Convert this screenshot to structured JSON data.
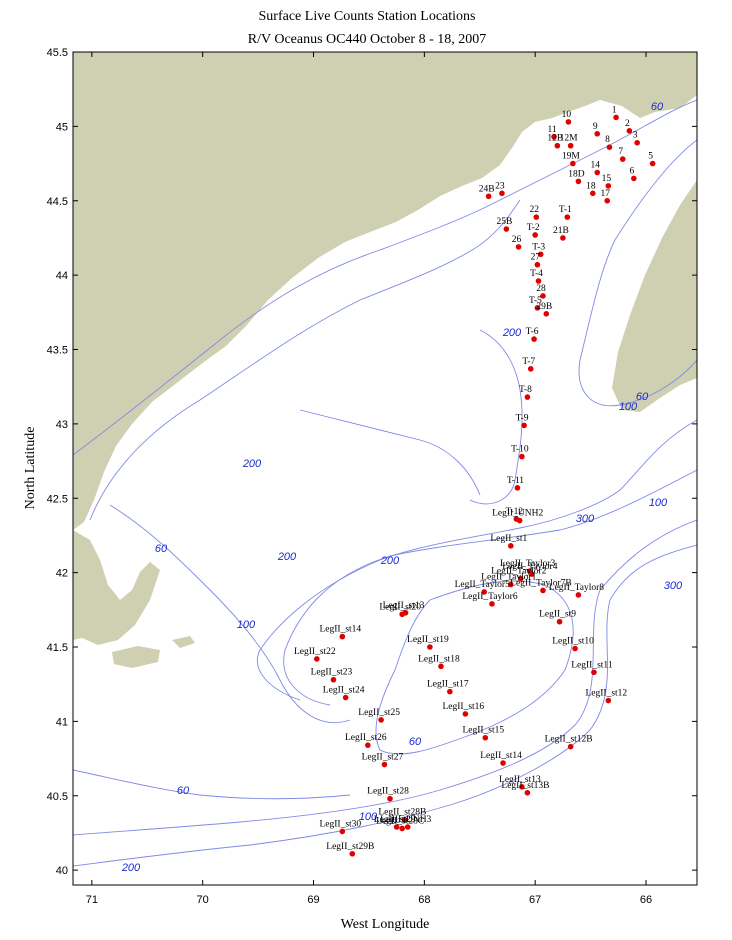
{
  "title": "Surface Live Counts Station Locations",
  "subtitle": "R/V Oceanus OC440 October 8 - 18, 2007",
  "x_label": "West Longitude",
  "y_label": "North Latitude",
  "xlim": [
    71.17,
    65.54
  ],
  "ylim": [
    39.9,
    45.5
  ],
  "xticks": [
    71,
    70,
    69,
    68,
    67,
    66
  ],
  "yticks": [
    40,
    40.5,
    41,
    41.5,
    42,
    42.5,
    43,
    43.5,
    44,
    44.5,
    45,
    45.5
  ],
  "marker_color": "#e00000",
  "stations": [
    {
      "name": "1",
      "lon": 66.27,
      "lat": 45.06
    },
    {
      "name": "10",
      "lon": 66.7,
      "lat": 45.03
    },
    {
      "name": "11",
      "lon": 66.83,
      "lat": 44.93
    },
    {
      "name": "12M",
      "lon": 66.68,
      "lat": 44.87
    },
    {
      "name": "12B",
      "lon": 66.8,
      "lat": 44.87
    },
    {
      "name": "9",
      "lon": 66.44,
      "lat": 44.95
    },
    {
      "name": "2",
      "lon": 66.15,
      "lat": 44.97
    },
    {
      "name": "3",
      "lon": 66.08,
      "lat": 44.89
    },
    {
      "name": "8",
      "lon": 66.33,
      "lat": 44.86
    },
    {
      "name": "7",
      "lon": 66.21,
      "lat": 44.78
    },
    {
      "name": "5",
      "lon": 65.94,
      "lat": 44.75
    },
    {
      "name": "19M",
      "lon": 66.66,
      "lat": 44.75
    },
    {
      "name": "6",
      "lon": 66.11,
      "lat": 44.65
    },
    {
      "name": "14",
      "lon": 66.44,
      "lat": 44.69
    },
    {
      "name": "15",
      "lon": 66.34,
      "lat": 44.6
    },
    {
      "name": "18D",
      "lon": 66.61,
      "lat": 44.63
    },
    {
      "name": "18",
      "lon": 66.48,
      "lat": 44.55
    },
    {
      "name": "17",
      "lon": 66.35,
      "lat": 44.5
    },
    {
      "name": "24B",
      "lon": 67.42,
      "lat": 44.53
    },
    {
      "name": "23",
      "lon": 67.3,
      "lat": 44.55
    },
    {
      "name": "22",
      "lon": 66.99,
      "lat": 44.39
    },
    {
      "name": "T-1",
      "lon": 66.71,
      "lat": 44.39
    },
    {
      "name": "25B",
      "lon": 67.26,
      "lat": 44.31
    },
    {
      "name": "T-2",
      "lon": 67.0,
      "lat": 44.27
    },
    {
      "name": "21B",
      "lon": 66.75,
      "lat": 44.25
    },
    {
      "name": "26",
      "lon": 67.15,
      "lat": 44.19
    },
    {
      "name": "T-3",
      "lon": 66.95,
      "lat": 44.14
    },
    {
      "name": "27",
      "lon": 66.98,
      "lat": 44.07
    },
    {
      "name": "T-4",
      "lon": 66.97,
      "lat": 43.96
    },
    {
      "name": "28",
      "lon": 66.93,
      "lat": 43.86
    },
    {
      "name": "T-5",
      "lon": 66.98,
      "lat": 43.78
    },
    {
      "name": "29B",
      "lon": 66.9,
      "lat": 43.74
    },
    {
      "name": "T-6",
      "lon": 67.01,
      "lat": 43.57
    },
    {
      "name": "T-7",
      "lon": 67.04,
      "lat": 43.37
    },
    {
      "name": "T-8",
      "lon": 67.07,
      "lat": 43.18
    },
    {
      "name": "T-9",
      "lon": 67.1,
      "lat": 42.99
    },
    {
      "name": "T-10",
      "lon": 67.12,
      "lat": 42.78
    },
    {
      "name": "T-11",
      "lon": 67.16,
      "lat": 42.57
    },
    {
      "name": "T-12",
      "lon": 67.17,
      "lat": 42.36
    },
    {
      "name": "LegII_UNH2",
      "lon": 67.14,
      "lat": 42.35
    },
    {
      "name": "LegII_st1",
      "lon": 67.22,
      "lat": 42.18
    },
    {
      "name": "LegII_Taylor3",
      "lon": 67.05,
      "lat": 42.01
    },
    {
      "name": "LegII_Taylor4",
      "lon": 67.03,
      "lat": 41.99
    },
    {
      "name": "LegII_Taylor2",
      "lon": 67.13,
      "lat": 41.96
    },
    {
      "name": "LegII_Taylor1",
      "lon": 67.22,
      "lat": 41.92
    },
    {
      "name": "LegII_Taylor8",
      "lon": 66.61,
      "lat": 41.85
    },
    {
      "name": "LegII_Taylor5",
      "lon": 67.46,
      "lat": 41.87
    },
    {
      "name": "LegII_Taylor7B",
      "lon": 66.93,
      "lat": 41.88
    },
    {
      "name": "LegII_Taylor6",
      "lon": 67.39,
      "lat": 41.79
    },
    {
      "name": "LegII_st9",
      "lon": 66.78,
      "lat": 41.67
    },
    {
      "name": "LegII_st13",
      "lon": 68.17,
      "lat": 41.73
    },
    {
      "name": "LegII_st20",
      "lon": 68.2,
      "lat": 41.72
    },
    {
      "name": "LegII_st14",
      "lon": 68.74,
      "lat": 41.57
    },
    {
      "name": "LegII_st10",
      "lon": 66.64,
      "lat": 41.49
    },
    {
      "name": "LegII_st19",
      "lon": 67.95,
      "lat": 41.5
    },
    {
      "name": "LegII_st22",
      "lon": 68.97,
      "lat": 41.42
    },
    {
      "name": "LegII_st18",
      "lon": 67.85,
      "lat": 41.37
    },
    {
      "name": "LegII_st11",
      "lon": 66.47,
      "lat": 41.33
    },
    {
      "name": "LegII_st23",
      "lon": 68.82,
      "lat": 41.28
    },
    {
      "name": "LegII_st17",
      "lon": 67.77,
      "lat": 41.2
    },
    {
      "name": "LegII_st24",
      "lon": 68.71,
      "lat": 41.16
    },
    {
      "name": "LegII_st12",
      "lon": 66.34,
      "lat": 41.14
    },
    {
      "name": "LegII_st16",
      "lon": 67.63,
      "lat": 41.05
    },
    {
      "name": "LegII_st25",
      "lon": 68.39,
      "lat": 41.01
    },
    {
      "name": "LegII_st15",
      "lon": 67.45,
      "lat": 40.89
    },
    {
      "name": "LegII_st26",
      "lon": 68.51,
      "lat": 40.84
    },
    {
      "name": "LegII_st12B",
      "lon": 66.68,
      "lat": 40.83
    },
    {
      "name": "LegII_st27",
      "lon": 68.36,
      "lat": 40.71
    },
    {
      "name": "LegII_st14",
      "lon": 67.29,
      "lat": 40.72
    },
    {
      "name": "LegII_st13",
      "lon": 67.12,
      "lat": 40.56
    },
    {
      "name": "LegII_st13B",
      "lon": 67.07,
      "lat": 40.52
    },
    {
      "name": "LegII_st28",
      "lon": 68.31,
      "lat": 40.48
    },
    {
      "name": "LegII_st28B",
      "lon": 68.18,
      "lat": 40.34
    },
    {
      "name": "LegII_UNH3",
      "lon": 68.15,
      "lat": 40.29
    },
    {
      "name": "LegII_st29",
      "lon": 68.25,
      "lat": 40.29
    },
    {
      "name": "LegII_st28C",
      "lon": 68.2,
      "lat": 40.28
    },
    {
      "name": "LegII_st30",
      "lon": 68.74,
      "lat": 40.26
    },
    {
      "name": "LegII_st29B",
      "lon": 68.65,
      "lat": 40.11
    }
  ],
  "contour_labels": [
    "60",
    "60",
    "100",
    "200",
    "200",
    "100",
    "300",
    "300",
    "200",
    "200",
    "60",
    "100",
    "60",
    "60",
    "100",
    "200"
  ]
}
